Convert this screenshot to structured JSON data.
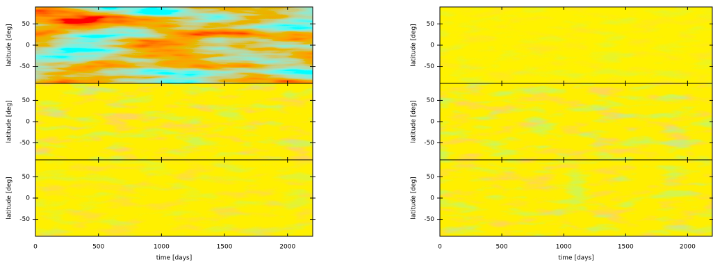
{
  "chart_data": [
    {
      "type": "heatmap",
      "ylabel": "latitude [deg]",
      "xlim": [
        0,
        2200
      ],
      "xticks": [
        0,
        500,
        1000,
        1500,
        2000
      ],
      "ylim": [
        -90,
        90
      ],
      "yticks": [
        -50,
        0,
        50
      ]
    },
    {
      "type": "heatmap",
      "ylabel": "latitude [deg]",
      "xlim": [
        0,
        2200
      ],
      "xticks": [
        0,
        500,
        1000,
        1500,
        2000
      ],
      "ylim": [
        -90,
        90
      ],
      "yticks": [
        -50,
        0,
        50
      ]
    },
    {
      "type": "heatmap",
      "ylabel": "latitude [deg]",
      "xlabel": "time [days]",
      "xlim": [
        0,
        2200
      ],
      "xticks": [
        0,
        500,
        1000,
        1500,
        2000
      ],
      "ylim": [
        -90,
        90
      ],
      "yticks": [
        -50,
        0,
        50
      ]
    },
    {
      "type": "heatmap",
      "ylabel": "latitude [deg]",
      "xlim": [
        0,
        2200
      ],
      "xticks": [
        0,
        500,
        1000,
        1500,
        2000
      ],
      "ylim": [
        -90,
        90
      ],
      "yticks": [
        -50,
        0,
        50
      ]
    },
    {
      "type": "heatmap",
      "ylabel": "latitude [deg]",
      "xlim": [
        0,
        2200
      ],
      "xticks": [
        0,
        500,
        1000,
        1500,
        2000
      ],
      "ylim": [
        -90,
        90
      ],
      "yticks": [
        -50,
        0,
        50
      ]
    },
    {
      "type": "heatmap",
      "ylabel": "latitude [deg]",
      "xlabel": "time [days]",
      "xlim": [
        0,
        2200
      ],
      "xticks": [
        0,
        500,
        1000,
        1500,
        2000
      ],
      "ylim": [
        -90,
        90
      ],
      "yticks": [
        -50,
        0,
        50
      ]
    }
  ]
}
